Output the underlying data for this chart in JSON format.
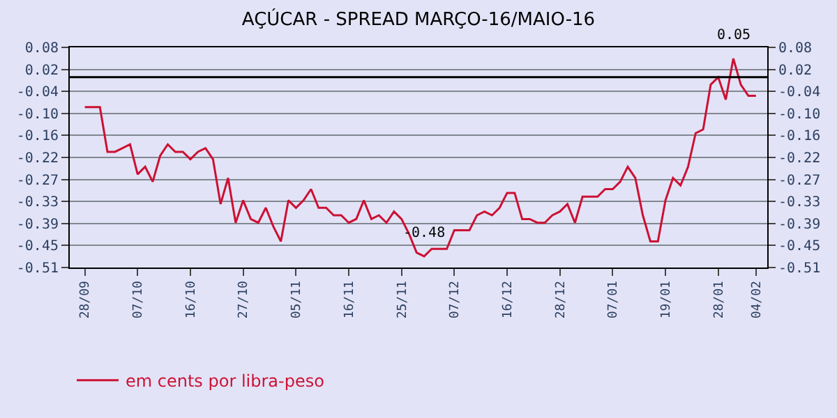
{
  "chart_data": {
    "type": "line",
    "title": "AÇÚCAR - SPREAD MARÇO-16/MAIO-16",
    "categories": [
      "28/09",
      null,
      null,
      null,
      null,
      null,
      null,
      "07/10",
      null,
      null,
      null,
      null,
      null,
      null,
      "16/10",
      null,
      null,
      null,
      null,
      null,
      null,
      "27/10",
      null,
      null,
      null,
      null,
      null,
      null,
      "05/11",
      null,
      null,
      null,
      null,
      null,
      null,
      "16/11",
      null,
      null,
      null,
      null,
      null,
      null,
      "25/11",
      null,
      null,
      null,
      null,
      null,
      null,
      "07/12",
      null,
      null,
      null,
      null,
      null,
      null,
      "16/12",
      null,
      null,
      null,
      null,
      null,
      null,
      "28/12",
      null,
      null,
      null,
      null,
      null,
      null,
      "07/01",
      null,
      null,
      null,
      null,
      null,
      null,
      "19/01",
      null,
      null,
      null,
      null,
      null,
      null,
      "28/01",
      null,
      null,
      null,
      null,
      "04/02"
    ],
    "series": [
      {
        "name": "em cents por libra-peso",
        "color": "#cc1133",
        "values": [
          -0.08,
          -0.08,
          -0.08,
          -0.2,
          -0.2,
          -0.19,
          -0.18,
          -0.26,
          -0.24,
          -0.28,
          -0.21,
          -0.18,
          -0.2,
          -0.2,
          -0.22,
          -0.2,
          -0.19,
          -0.22,
          -0.34,
          -0.27,
          -0.39,
          -0.33,
          -0.38,
          -0.39,
          -0.35,
          -0.4,
          -0.44,
          -0.33,
          -0.35,
          -0.33,
          -0.3,
          -0.35,
          -0.35,
          -0.37,
          -0.37,
          -0.39,
          -0.38,
          -0.33,
          -0.38,
          -0.37,
          -0.39,
          -0.36,
          -0.38,
          -0.42,
          -0.47,
          -0.48,
          -0.46,
          -0.46,
          -0.46,
          -0.41,
          -0.41,
          -0.41,
          -0.37,
          -0.36,
          -0.37,
          -0.35,
          -0.31,
          -0.31,
          -0.38,
          -0.38,
          -0.39,
          -0.39,
          -0.37,
          -0.36,
          -0.34,
          -0.39,
          -0.32,
          -0.32,
          -0.32,
          -0.3,
          -0.3,
          -0.28,
          -0.24,
          -0.27,
          -0.37,
          -0.44,
          -0.44,
          -0.33,
          -0.27,
          -0.29,
          -0.24,
          -0.15,
          -0.14,
          -0.02,
          0.0,
          -0.06,
          0.05,
          -0.02,
          -0.05,
          -0.05
        ],
        "value_labels": [
          null,
          null,
          null,
          null,
          null,
          null,
          null,
          null,
          null,
          null,
          null,
          null,
          null,
          null,
          null,
          null,
          null,
          null,
          null,
          null,
          null,
          null,
          null,
          null,
          null,
          null,
          null,
          null,
          null,
          null,
          null,
          null,
          null,
          null,
          null,
          null,
          null,
          null,
          null,
          null,
          null,
          null,
          null,
          null,
          null,
          "-0.48",
          null,
          null,
          null,
          null,
          null,
          null,
          null,
          null,
          null,
          null,
          null,
          null,
          null,
          null,
          null,
          null,
          null,
          null,
          null,
          null,
          null,
          null,
          null,
          null,
          null,
          null,
          null,
          null,
          null,
          null,
          null,
          null,
          null,
          null,
          null,
          null,
          null,
          null,
          null,
          null,
          "0.05",
          null,
          null,
          null
        ]
      }
    ],
    "ylim": [
      -0.51,
      0.08
    ],
    "yticks": [
      -0.51,
      {
        "value": -0.451,
        "label": "-0.45"
      },
      {
        "value": -0.392,
        "label": "-0.39"
      },
      {
        "value": -0.333,
        "label": "-0.33"
      },
      {
        "value": -0.274,
        "label": "-0.27"
      },
      {
        "value": -0.215,
        "label": "-0.22"
      },
      {
        "value": -0.156,
        "label": "-0.16"
      },
      {
        "value": -0.097,
        "label": "-0.10"
      },
      {
        "value": -0.038,
        "label": "-0.04"
      },
      {
        "value": 0.021,
        "label": "0.02"
      },
      0.08
    ],
    "y2lim": [
      -0.51,
      0.08
    ],
    "y2ticks": [
      -0.51,
      {
        "value": -0.451,
        "label": "-0.45"
      },
      {
        "value": -0.392,
        "label": "-0.39"
      },
      {
        "value": -0.333,
        "label": "-0.33"
      },
      {
        "value": -0.274,
        "label": "-0.27"
      },
      {
        "value": -0.215,
        "label": "-0.22"
      },
      {
        "value": -0.156,
        "label": "-0.16"
      },
      {
        "value": -0.097,
        "label": "-0.10"
      },
      {
        "value": -0.038,
        "label": "-0.04"
      },
      {
        "value": 0.021,
        "label": "0.02"
      },
      0.08
    ],
    "ref_lines": [
      {
        "axis": "y",
        "value": 0,
        "color": "#000000"
      }
    ],
    "grid": "y",
    "legend": "bottom left",
    "marker": "none",
    "line_style": "solid"
  }
}
